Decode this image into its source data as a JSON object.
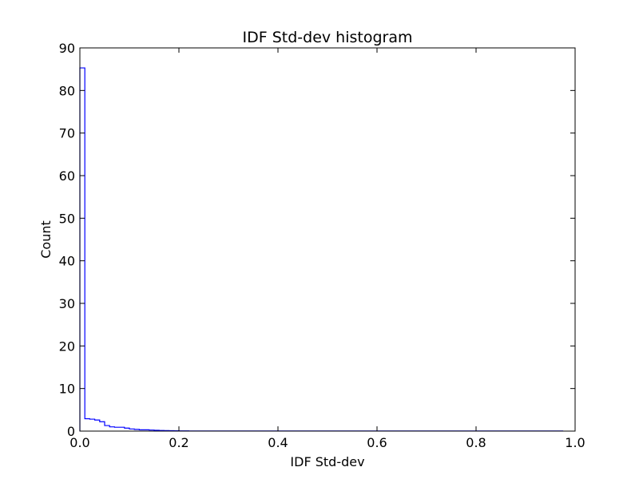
{
  "chart_data": {
    "type": "histogram",
    "title": "IDF Std-dev histogram",
    "xlabel": "IDF Std-dev",
    "ylabel": "Count",
    "xlim": [
      0.0,
      1.0
    ],
    "ylim": [
      0,
      90
    ],
    "x_ticks": [
      {
        "value": 0.0,
        "label": "0.0"
      },
      {
        "value": 0.2,
        "label": "0.2"
      },
      {
        "value": 0.4,
        "label": "0.4"
      },
      {
        "value": 0.6,
        "label": "0.6"
      },
      {
        "value": 0.8,
        "label": "0.8"
      },
      {
        "value": 1.0,
        "label": "1.0"
      }
    ],
    "y_ticks": [
      {
        "value": 0,
        "label": "0"
      },
      {
        "value": 10,
        "label": "10"
      },
      {
        "value": 20,
        "label": "20"
      },
      {
        "value": 30,
        "label": "30"
      },
      {
        "value": 40,
        "label": "40"
      },
      {
        "value": 50,
        "label": "50"
      },
      {
        "value": 60,
        "label": "60"
      },
      {
        "value": 70,
        "label": "70"
      },
      {
        "value": 80,
        "label": "80"
      },
      {
        "value": 90,
        "label": "90"
      }
    ],
    "grid": false,
    "line_color": "#0000ff",
    "bin_edges": [
      0.0,
      0.01,
      0.02,
      0.03,
      0.04,
      0.05,
      0.06,
      0.07,
      0.08,
      0.09,
      0.1,
      0.11,
      0.12,
      0.13,
      0.14,
      0.15,
      0.16,
      0.17,
      0.18,
      0.19,
      0.2,
      0.22,
      0.25,
      0.975
    ],
    "counts": [
      85.3,
      2.9,
      2.8,
      2.6,
      2.2,
      1.3,
      1.0,
      0.9,
      0.9,
      0.7,
      0.5,
      0.4,
      0.3,
      0.3,
      0.25,
      0.2,
      0.15,
      0.12,
      0.1,
      0.08,
      0.05,
      0.03,
      0.02
    ]
  }
}
